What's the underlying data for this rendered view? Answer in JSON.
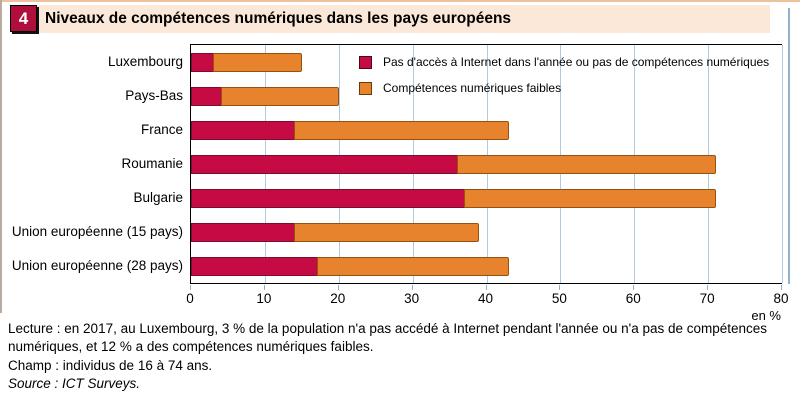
{
  "figure": {
    "badge": "4",
    "title": "Niveaux de compétences numériques dans les pays européens"
  },
  "chart_data": {
    "type": "bar",
    "orientation": "horizontal",
    "stacked": true,
    "categories": [
      "Luxembourg",
      "Pays-Bas",
      "France",
      "Roumanie",
      "Bulgarie",
      "Union européenne (15 pays)",
      "Union européenne (28 pays)"
    ],
    "series": [
      {
        "name": "Pas d'accès à Internet dans l'année ou pas de compétences numériques",
        "color": "#c60b44",
        "values": [
          3,
          4,
          14,
          36,
          37,
          14,
          17
        ]
      },
      {
        "name": "Compétences numériques faibles",
        "color": "#e8832d",
        "values": [
          12,
          16,
          29,
          35,
          34,
          25,
          26
        ]
      }
    ],
    "totals": [
      15,
      20,
      43,
      71,
      71,
      39,
      43
    ],
    "xlim": [
      0,
      80
    ],
    "xticks": [
      0,
      10,
      20,
      30,
      40,
      50,
      60,
      70,
      80
    ],
    "unit_label": "en %",
    "grid": "vertical-lightblue",
    "legend_position": "top-right-inside"
  },
  "footer": {
    "lecture": "Lecture : en 2017, au Luxembourg, 3 % de la population n'a pas accédé à Internet pendant l'année ou n'a pas de compétences numériques, et 12 % a des compétences numériques faibles.",
    "champ": "Champ : individus de 16 à 74 ans.",
    "source": "Source : ICT Surveys."
  },
  "colors": {
    "series_red": "#c60b44",
    "series_orange": "#e8832d",
    "header_bg": "#fbe8d8",
    "badge_bg": "#b00f3c",
    "gridline": "#b0cbdf"
  }
}
